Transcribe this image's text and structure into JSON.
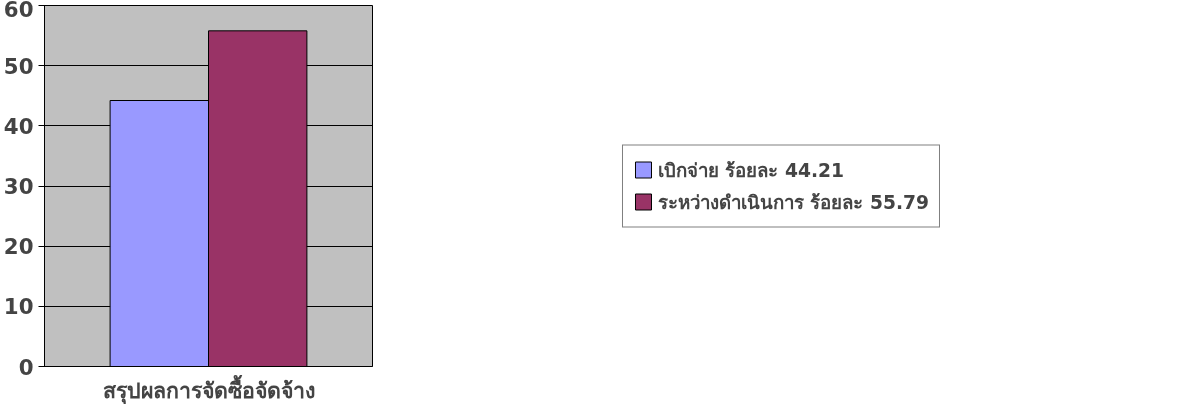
{
  "chart_data": {
    "type": "bar",
    "categories": [
      "สรุปผลการจัดซื้อจัดจ้าง"
    ],
    "series": [
      {
        "name": "เบิกจ่าย ร้อยละ 44.21",
        "color": "#9999ff",
        "values": [
          44.21
        ]
      },
      {
        "name": "ระหว่างดำเนินการ ร้อยละ 55.79",
        "color": "#993366",
        "values": [
          55.79
        ]
      }
    ],
    "ylim": [
      0,
      60
    ],
    "yticks": [
      0,
      10,
      20,
      30,
      40,
      50,
      60
    ],
    "grid": "y",
    "legend": "right"
  }
}
